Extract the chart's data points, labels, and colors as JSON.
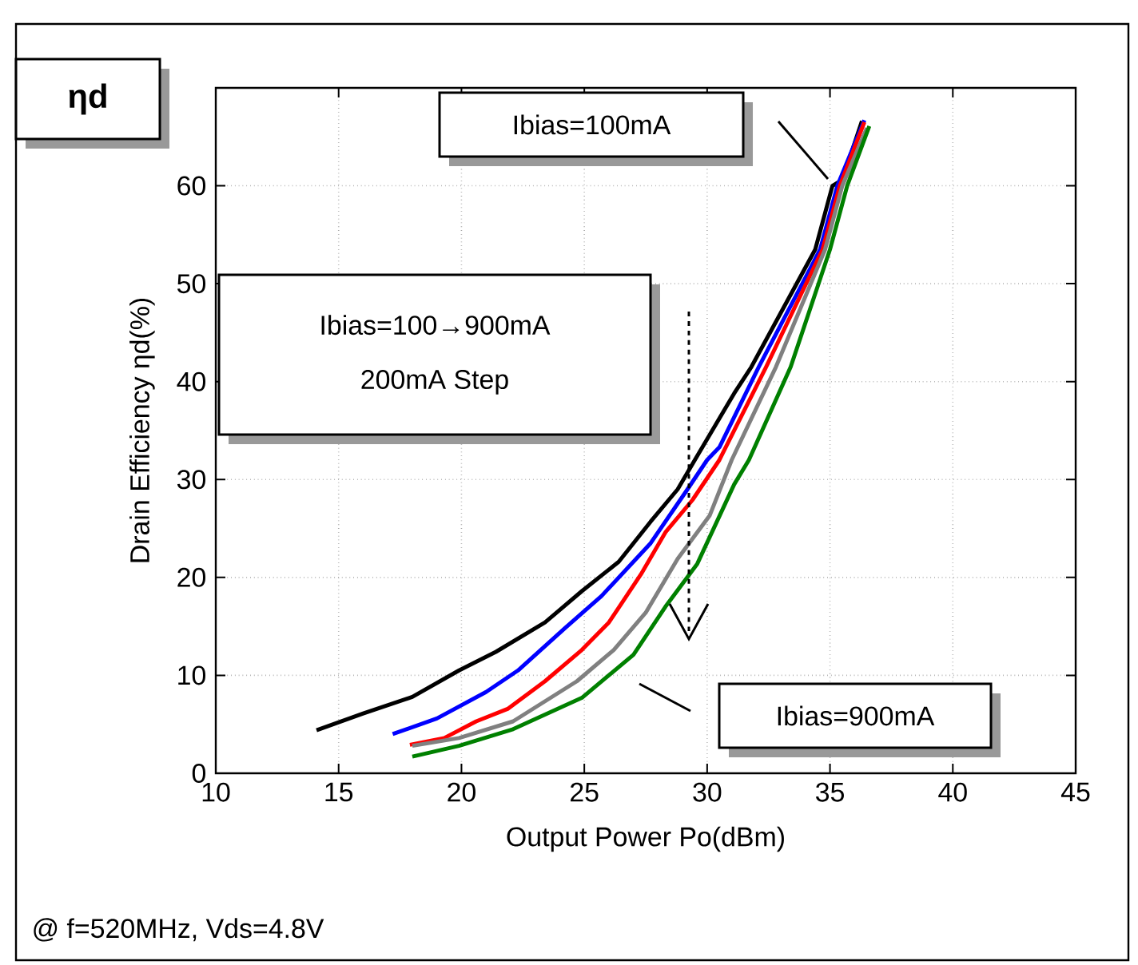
{
  "chart_data": {
    "type": "line",
    "title": "ηd",
    "xlabel": "Output Power Po(dBm)",
    "ylabel": "Drain Efficiency ηd(%)",
    "xlim": [
      10,
      45
    ],
    "ylim": [
      0,
      70
    ],
    "xticks": [
      10,
      15,
      20,
      25,
      30,
      35,
      40,
      45
    ],
    "yticks": [
      0,
      10,
      20,
      30,
      40,
      50,
      60
    ],
    "grid": true,
    "marker": "none",
    "line_style": "solid",
    "series": [
      {
        "color": "#000000",
        "x": [
          14.1,
          16.0,
          18.0,
          19.9,
          21.4,
          23.4,
          24.9,
          26.4,
          27.7,
          28.8,
          29.5,
          31.1,
          31.8,
          34.4,
          35.1,
          35.5,
          36.3
        ],
        "values": [
          4.4,
          6.1,
          7.8,
          10.5,
          12.4,
          15.4,
          18.6,
          21.6,
          25.7,
          29.0,
          32.0,
          38.8,
          41.5,
          53.5,
          60.0,
          60.6,
          66.6
        ]
      },
      {
        "color": "#0000ff",
        "x": [
          17.2,
          19.0,
          21.0,
          22.3,
          24.2,
          25.7,
          27.7,
          29.2,
          30.0,
          30.5,
          32.1,
          34.6,
          35.3,
          36.4
        ],
        "values": [
          4.0,
          5.6,
          8.3,
          10.5,
          14.8,
          18.1,
          23.5,
          29.0,
          32.0,
          33.3,
          41.5,
          53.5,
          60.0,
          66.7
        ]
      },
      {
        "color": "#ff0000",
        "x": [
          17.9,
          19.3,
          20.6,
          21.9,
          23.4,
          24.9,
          26.0,
          27.3,
          28.3,
          29.4,
          30.5,
          31.1,
          32.4,
          34.7,
          35.4,
          36.4
        ],
        "values": [
          2.9,
          3.6,
          5.3,
          6.6,
          9.4,
          12.6,
          15.4,
          20.3,
          24.6,
          27.9,
          32.0,
          35.0,
          41.5,
          53.5,
          60.0,
          66.5
        ]
      },
      {
        "color": "#808080",
        "x": [
          18.0,
          19.9,
          22.1,
          24.7,
          26.2,
          27.5,
          28.8,
          30.1,
          31.0,
          32.8,
          34.8,
          35.5,
          36.5
        ],
        "values": [
          2.8,
          3.6,
          5.3,
          9.4,
          12.6,
          16.4,
          21.9,
          26.3,
          32.0,
          41.5,
          53.5,
          60.0,
          65.9
        ]
      },
      {
        "color": "#008000",
        "x": [
          18.0,
          19.9,
          22.1,
          24.9,
          27.0,
          28.3,
          29.6,
          31.1,
          31.7,
          33.4,
          35.0,
          35.7,
          36.6
        ],
        "values": [
          1.7,
          2.8,
          4.5,
          7.7,
          12.1,
          17.0,
          21.4,
          29.5,
          32.0,
          41.5,
          53.5,
          60.0,
          66.1
        ]
      }
    ],
    "annotations": [
      "Ibias=100mA",
      "Ibias=900mA",
      "Ibias=100→900mA",
      "200mA Step",
      "@ f=520MHz, Vds=4.8V"
    ]
  }
}
